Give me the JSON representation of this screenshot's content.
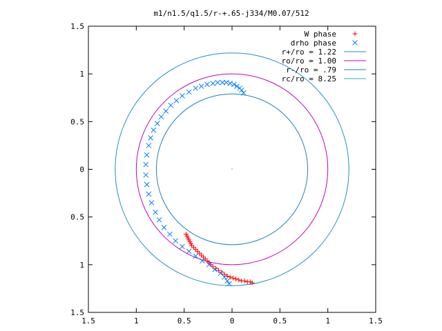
{
  "chart_data": {
    "type": "scatter",
    "title": "m1/n1.5/q1.5/r-+.65-j334/M0.07/512",
    "xlabel": "",
    "ylabel": "",
    "xlim": [
      -1.5,
      1.5
    ],
    "ylim": [
      -1.5,
      1.5
    ],
    "x_ticks": [
      -1.5,
      -1,
      -0.5,
      0,
      0.5,
      1,
      1.5
    ],
    "y_ticks": [
      -1.5,
      -1,
      -0.5,
      0,
      0.5,
      1,
      1.5
    ],
    "x_tick_labels": [
      "1.5",
      "1",
      "0.5",
      "0",
      "0.5",
      "1",
      "1.5"
    ],
    "y_tick_labels": [
      "1.5",
      "1",
      "0.5",
      "0",
      "0.5",
      "1",
      "1.5"
    ],
    "grid": false,
    "legend_position": "top-right",
    "legend": [
      {
        "label": "W phase",
        "marker": "+",
        "color": "#ff0000"
      },
      {
        "label": "drho phase",
        "marker": "x",
        "color": "#0080ff"
      },
      {
        "label": "r+/ro = 1.22",
        "line": true,
        "color": "#1f8fc8"
      },
      {
        "label": "ro/ro = 1.00",
        "line": true,
        "color": "#c000c0"
      },
      {
        "label": "r-/ro = .79",
        "line": true,
        "color": "#1f80c0"
      },
      {
        "label": "rc/ro = 8.25",
        "line": true,
        "color": "#20b0c0"
      }
    ],
    "circles": [
      {
        "name": "r+/ro = 1.22",
        "r": 1.22,
        "color": "#1f8fc8"
      },
      {
        "name": "ro/ro = 1.00",
        "r": 1.0,
        "color": "#c000c0"
      },
      {
        "name": "r-/ro = .79",
        "r": 0.79,
        "color": "#1f80c0"
      }
    ],
    "series": [
      {
        "name": "W phase",
        "marker": "+",
        "color": "#ff0000",
        "points": [
          [
            -0.48,
            -0.68
          ],
          [
            -0.47,
            -0.7
          ],
          [
            -0.46,
            -0.72
          ],
          [
            -0.45,
            -0.74
          ],
          [
            -0.44,
            -0.76
          ],
          [
            -0.43,
            -0.78
          ],
          [
            -0.42,
            -0.8
          ],
          [
            -0.4,
            -0.82
          ],
          [
            -0.38,
            -0.84
          ],
          [
            -0.36,
            -0.86
          ],
          [
            -0.34,
            -0.88
          ],
          [
            -0.32,
            -0.9
          ],
          [
            -0.3,
            -0.92
          ],
          [
            -0.28,
            -0.94
          ],
          [
            -0.26,
            -0.96
          ],
          [
            -0.24,
            -0.98
          ],
          [
            -0.22,
            -1.0
          ],
          [
            -0.2,
            -1.02
          ],
          [
            -0.17,
            -1.04
          ],
          [
            -0.14,
            -1.06
          ],
          [
            -0.11,
            -1.08
          ],
          [
            -0.08,
            -1.1
          ],
          [
            -0.05,
            -1.12
          ],
          [
            -0.02,
            -1.13
          ],
          [
            0.01,
            -1.14
          ],
          [
            0.04,
            -1.15
          ],
          [
            0.07,
            -1.16
          ],
          [
            0.1,
            -1.17
          ],
          [
            0.13,
            -1.17
          ],
          [
            0.16,
            -1.18
          ],
          [
            0.19,
            -1.18
          ],
          [
            0.21,
            -1.19
          ]
        ]
      },
      {
        "name": "drho phase",
        "marker": "x",
        "color": "#0080ff",
        "points": [
          [
            0.12,
            0.8
          ],
          [
            0.1,
            0.83
          ],
          [
            0.08,
            0.85
          ],
          [
            0.05,
            0.87
          ],
          [
            0.02,
            0.89
          ],
          [
            -0.02,
            0.9
          ],
          [
            -0.06,
            0.91
          ],
          [
            -0.1,
            0.91
          ],
          [
            -0.15,
            0.91
          ],
          [
            -0.2,
            0.9
          ],
          [
            -0.26,
            0.89
          ],
          [
            -0.32,
            0.87
          ],
          [
            -0.38,
            0.85
          ],
          [
            -0.45,
            0.81
          ],
          [
            -0.52,
            0.77
          ],
          [
            -0.58,
            0.72
          ],
          [
            -0.64,
            0.67
          ],
          [
            -0.69,
            0.61
          ],
          [
            -0.74,
            0.55
          ],
          [
            -0.78,
            0.48
          ],
          [
            -0.82,
            0.41
          ],
          [
            -0.85,
            0.33
          ],
          [
            -0.87,
            0.25
          ],
          [
            -0.89,
            0.15
          ],
          [
            -0.9,
            0.05
          ],
          [
            -0.9,
            -0.06
          ],
          [
            -0.89,
            -0.16
          ],
          [
            -0.87,
            -0.26
          ],
          [
            -0.84,
            -0.35
          ],
          [
            -0.8,
            -0.45
          ],
          [
            -0.76,
            -0.53
          ],
          [
            -0.71,
            -0.61
          ],
          [
            -0.65,
            -0.68
          ],
          [
            -0.59,
            -0.75
          ],
          [
            -0.52,
            -0.81
          ],
          [
            -0.45,
            -0.86
          ],
          [
            -0.38,
            -0.91
          ],
          [
            -0.31,
            -0.96
          ],
          [
            -0.24,
            -1.0
          ],
          [
            -0.18,
            -1.05
          ],
          [
            -0.12,
            -1.09
          ],
          [
            -0.08,
            -1.13
          ],
          [
            -0.05,
            -1.17
          ],
          [
            -0.03,
            -1.2
          ]
        ]
      }
    ]
  }
}
